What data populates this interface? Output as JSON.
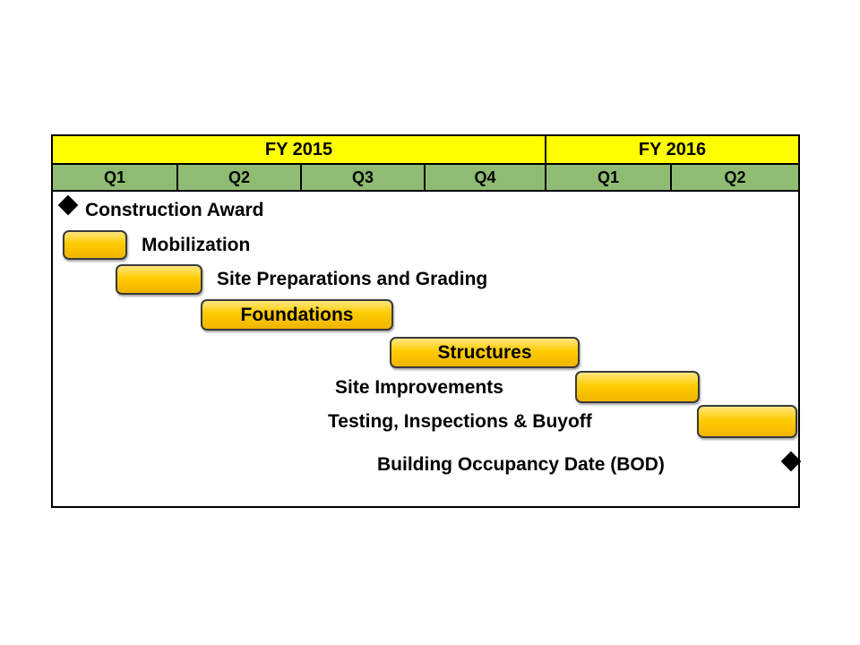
{
  "fiscal_years": [
    "FY 2015",
    "FY 2016"
  ],
  "quarters": [
    "Q1",
    "Q2",
    "Q3",
    "Q4",
    "Q1",
    "Q2"
  ],
  "activities": {
    "construction_award": "Construction Award",
    "mobilization": "Mobilization",
    "site_preparations": "Site Preparations and Grading",
    "foundations": "Foundations",
    "structures": "Structures",
    "site_improvements": "Site Improvements",
    "testing": "Testing, Inspections & Buyoff",
    "bod": "Building Occupancy Date (BOD)"
  },
  "colors": {
    "fy_header": "#ffff00",
    "quarter_header": "#8fbc72",
    "bar": "#ffcc00"
  }
}
